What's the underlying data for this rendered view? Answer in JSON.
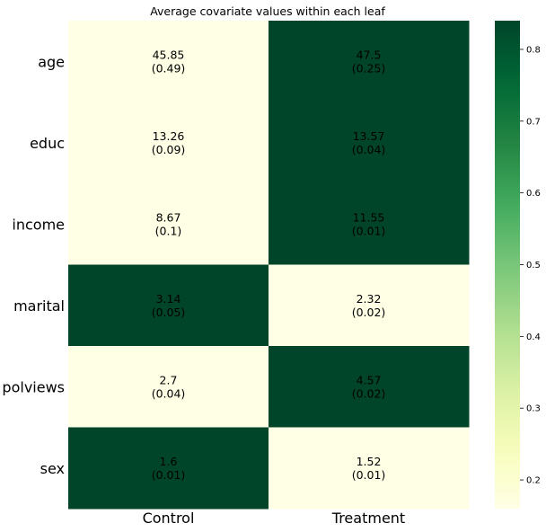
{
  "chart_data": {
    "type": "heatmap",
    "title": "Average covariate values within each leaf",
    "columns": [
      "Control",
      "Treatment"
    ],
    "rows": [
      "age",
      "educ",
      "income",
      "marital",
      "polviews",
      "sex"
    ],
    "values": [
      [
        "45.85",
        "47.5"
      ],
      [
        "13.26",
        "13.57"
      ],
      [
        "8.67",
        "11.55"
      ],
      [
        "3.14",
        "2.32"
      ],
      [
        "2.7",
        "4.57"
      ],
      [
        "1.6",
        "1.52"
      ]
    ],
    "std_errors": [
      [
        "(0.49)",
        "(0.25)"
      ],
      [
        "(0.09)",
        "(0.04)"
      ],
      [
        "(0.1)",
        "(0.01)"
      ],
      [
        "(0.05)",
        "(0.02)"
      ],
      [
        "(0.04)",
        "(0.02)"
      ],
      [
        "(0.01)",
        "(0.01)"
      ]
    ],
    "color_values": [
      [
        0.16,
        0.84
      ],
      [
        0.16,
        0.84
      ],
      [
        0.16,
        0.84
      ],
      [
        0.84,
        0.16
      ],
      [
        0.16,
        0.84
      ],
      [
        0.84,
        0.16
      ]
    ],
    "colorbar": {
      "range": [
        0.16,
        0.84
      ],
      "ticks": [
        "0.2",
        "0.3",
        "0.4",
        "0.5",
        "0.6",
        "0.7",
        "0.8"
      ],
      "colormap": "YlGn"
    },
    "colors": {
      "low": "#ffffe5",
      "high": "#004529"
    }
  }
}
